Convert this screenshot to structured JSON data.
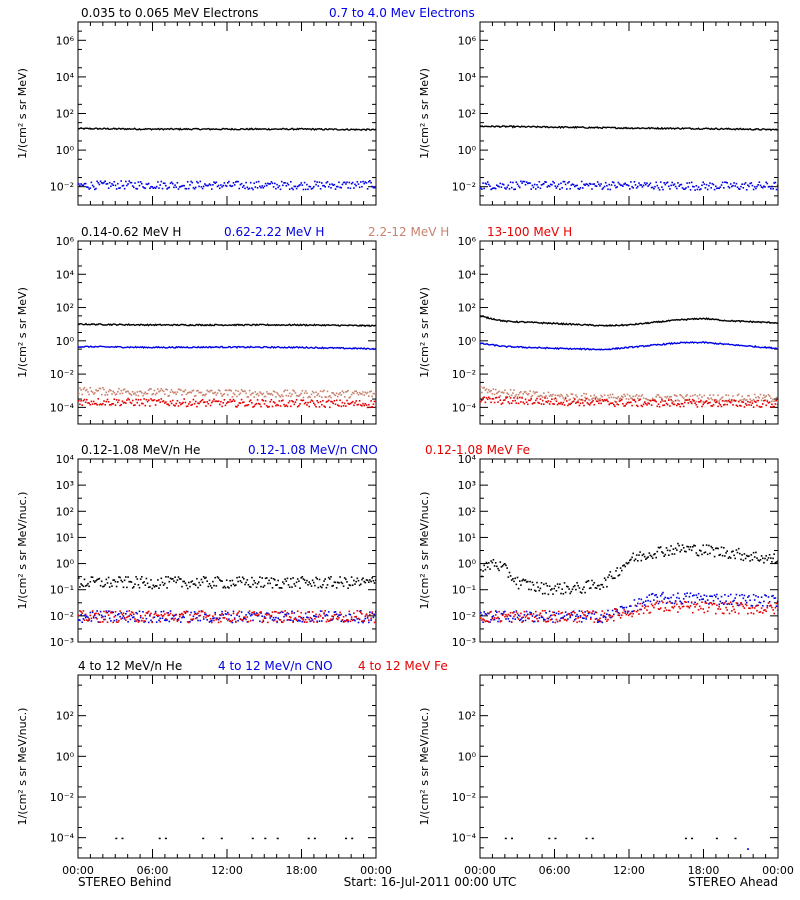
{
  "colors": {
    "black": "#000000",
    "blue": "#0000e6",
    "tan": "#c8826e",
    "red": "#e60000"
  },
  "figure": {
    "footer": {
      "left": "STEREO Behind",
      "center": "Start: 16-Jul-2011 00:00 UTC",
      "right": "STEREO Ahead"
    }
  },
  "chart_data": [
    {
      "type": "scatter",
      "row": 0,
      "side": "behind",
      "ylabel": "1/(cm² s sr MeV)",
      "ylim_log10": [
        -3,
        7
      ],
      "ytick_exponents": [
        -2,
        0,
        2,
        4,
        6
      ],
      "ytick_labels": [
        "10⁻²",
        "10⁰",
        "10²",
        "10⁴",
        "10⁶"
      ],
      "xlim_hours": [
        0,
        24
      ],
      "xtick_labels": [
        "00:00",
        "06:00",
        "12:00",
        "18:00",
        "00:00"
      ],
      "legend": [
        {
          "text": "0.035 to 0.065 MeV Electrons",
          "color": "black"
        },
        {
          "text": "0.7 to 4.0 Mev Electrons",
          "color": "blue"
        }
      ],
      "series": [
        {
          "name": "0.035 to 0.065 MeV Electrons",
          "color": "black",
          "style": "line",
          "x": [
            0,
            6,
            12,
            18,
            24
          ],
          "y": [
            15,
            14,
            14,
            14,
            13
          ]
        },
        {
          "name": "0.7 to 4.0 Mev Electrons",
          "color": "blue",
          "style": "dots",
          "x": [
            0,
            6,
            12,
            18,
            24
          ],
          "y": [
            0.013,
            0.014,
            0.013,
            0.013,
            0.014
          ]
        }
      ]
    },
    {
      "type": "scatter",
      "row": 0,
      "side": "ahead",
      "ylabel": "1/(cm² s sr MeV)",
      "ylim_log10": [
        -3,
        7
      ],
      "ytick_exponents": [
        -2,
        0,
        2,
        4,
        6
      ],
      "ytick_labels": [
        "10⁻²",
        "10⁰",
        "10²",
        "10⁴",
        "10⁶"
      ],
      "xlim_hours": [
        0,
        24
      ],
      "xtick_labels": [
        "00:00",
        "06:00",
        "12:00",
        "18:00",
        "00:00"
      ],
      "legend": [],
      "series": [
        {
          "name": "0.035 to 0.065 MeV Electrons",
          "color": "black",
          "style": "line",
          "x": [
            0,
            6,
            12,
            18,
            24
          ],
          "y": [
            20,
            18,
            16,
            15,
            13
          ]
        },
        {
          "name": "0.7 to 4.0 Mev Electrons",
          "color": "blue",
          "style": "dots",
          "x": [
            0,
            6,
            12,
            18,
            24
          ],
          "y": [
            0.013,
            0.013,
            0.013,
            0.012,
            0.012
          ]
        }
      ]
    },
    {
      "type": "scatter",
      "row": 1,
      "side": "behind",
      "ylabel": "1/(cm² s sr MeV)",
      "ylim_log10": [
        -5,
        6
      ],
      "ytick_exponents": [
        -4,
        -2,
        0,
        2,
        4,
        6
      ],
      "ytick_labels": [
        "10⁻⁴",
        "10⁻²",
        "10⁰",
        "10²",
        "10⁴",
        "10⁶"
      ],
      "xlim_hours": [
        0,
        24
      ],
      "xtick_labels": [
        "00:00",
        "06:00",
        "12:00",
        "18:00",
        "00:00"
      ],
      "legend": [
        {
          "text": "0.14-0.62 MeV H",
          "color": "black"
        },
        {
          "text": "0.62-2.22 MeV H",
          "color": "blue"
        },
        {
          "text": "2.2-12 MeV H",
          "color": "tan"
        },
        {
          "text": "13-100 MeV H",
          "color": "red"
        }
      ],
      "series": [
        {
          "name": "0.14-0.62 MeV H",
          "color": "black",
          "style": "line",
          "x": [
            0,
            6,
            12,
            18,
            24
          ],
          "y": [
            10,
            9,
            9,
            9,
            8
          ]
        },
        {
          "name": "0.62-2.22 MeV H",
          "color": "blue",
          "style": "line",
          "x": [
            0,
            6,
            12,
            18,
            24
          ],
          "y": [
            0.45,
            0.4,
            0.42,
            0.4,
            0.33
          ]
        },
        {
          "name": "2.2-12 MeV H",
          "color": "tan",
          "style": "dots",
          "x": [
            0,
            6,
            12,
            18,
            24
          ],
          "y": [
            0.0011,
            0.0009,
            0.0008,
            0.0007,
            0.0007
          ]
        },
        {
          "name": "13-100 MeV H",
          "color": "red",
          "style": "dots",
          "x": [
            0,
            6,
            12,
            18,
            24
          ],
          "y": [
            0.00025,
            0.00022,
            0.0002,
            0.00019,
            0.00018
          ]
        }
      ]
    },
    {
      "type": "scatter",
      "row": 1,
      "side": "ahead",
      "ylabel": "1/(cm² s sr MeV)",
      "ylim_log10": [
        -5,
        6
      ],
      "ytick_exponents": [
        -4,
        -2,
        0,
        2,
        4,
        6
      ],
      "ytick_labels": [
        "10⁻⁴",
        "10⁻²",
        "10⁰",
        "10²",
        "10⁴",
        "10⁶"
      ],
      "xlim_hours": [
        0,
        24
      ],
      "xtick_labels": [
        "00:00",
        "06:00",
        "12:00",
        "18:00",
        "00:00"
      ],
      "legend": [],
      "series": [
        {
          "name": "0.14-0.62 MeV H",
          "color": "black",
          "style": "line",
          "x": [
            0,
            2,
            6,
            10,
            12,
            16,
            18,
            20,
            24
          ],
          "y": [
            30,
            15,
            11,
            8,
            9,
            18,
            22,
            16,
            12
          ]
        },
        {
          "name": "0.62-2.22 MeV H",
          "color": "blue",
          "style": "line",
          "x": [
            0,
            2,
            6,
            10,
            12,
            16,
            18,
            20,
            24
          ],
          "y": [
            0.7,
            0.45,
            0.35,
            0.3,
            0.4,
            0.75,
            0.8,
            0.6,
            0.35
          ]
        },
        {
          "name": "2.2-12 MeV H",
          "color": "tan",
          "style": "dots",
          "x": [
            0,
            2,
            6,
            12,
            18,
            24
          ],
          "y": [
            0.0015,
            0.0008,
            0.0005,
            0.0004,
            0.0004,
            0.0004
          ]
        },
        {
          "name": "13-100 MeV H",
          "color": "red",
          "style": "dots",
          "x": [
            0,
            6,
            12,
            18,
            24
          ],
          "y": [
            0.0003,
            0.00025,
            0.0002,
            0.0002,
            0.00018
          ]
        }
      ]
    },
    {
      "type": "scatter",
      "row": 2,
      "side": "behind",
      "ylabel": "1/(cm² s sr MeV/nuc.)",
      "ylim_log10": [
        -3,
        4
      ],
      "ytick_exponents": [
        -3,
        -2,
        -1,
        0,
        1,
        2,
        3,
        4
      ],
      "ytick_labels": [
        "10⁻³",
        "10⁻²",
        "10⁻¹",
        "10⁰",
        "10¹",
        "10²",
        "10³",
        "10⁴"
      ],
      "xlim_hours": [
        0,
        24
      ],
      "xtick_labels": [
        "00:00",
        "06:00",
        "12:00",
        "18:00",
        "00:00"
      ],
      "legend": [
        {
          "text": "0.12-1.08 MeV/n He",
          "color": "black"
        },
        {
          "text": "0.12-1.08 MeV/n CNO",
          "color": "blue"
        },
        {
          "text": "0.12-1.08 MeV Fe",
          "color": "red"
        }
      ],
      "series": [
        {
          "name": "0.12-1.08 MeV/n He",
          "color": "black",
          "style": "dots",
          "x": [
            0,
            6,
            12,
            18,
            24
          ],
          "y": [
            0.2,
            0.2,
            0.2,
            0.2,
            0.2
          ]
        },
        {
          "name": "0.12-1.08 MeV/n CNO",
          "color": "blue",
          "style": "dots",
          "x": [
            0,
            6,
            12,
            18,
            24
          ],
          "y": [
            0.01,
            0.01,
            0.01,
            0.01,
            0.01
          ]
        },
        {
          "name": "0.12-1.08 MeV Fe",
          "color": "red",
          "style": "dots",
          "x": [
            0,
            6,
            12,
            18,
            24
          ],
          "y": [
            0.01,
            0.01,
            0.01,
            0.01,
            0.01
          ]
        }
      ]
    },
    {
      "type": "scatter",
      "row": 2,
      "side": "ahead",
      "ylabel": "1/(cm² s sr MeV/nuc.)",
      "ylim_log10": [
        -3,
        4
      ],
      "ytick_exponents": [
        -3,
        -2,
        -1,
        0,
        1,
        2,
        3,
        4
      ],
      "ytick_labels": [
        "10⁻³",
        "10⁻²",
        "10⁻¹",
        "10⁰",
        "10¹",
        "10²",
        "10³",
        "10⁴"
      ],
      "xlim_hours": [
        0,
        24
      ],
      "xtick_labels": [
        "00:00",
        "06:00",
        "12:00",
        "18:00",
        "00:00"
      ],
      "legend": [],
      "series": [
        {
          "name": "0.12-1.08 MeV/n He",
          "color": "black",
          "style": "dots",
          "x": [
            0,
            1,
            2,
            3,
            5,
            8,
            10,
            12,
            14,
            16,
            18,
            20,
            22,
            24
          ],
          "y": [
            0.5,
            1.2,
            0.6,
            0.2,
            0.12,
            0.12,
            0.2,
            1.5,
            3,
            4,
            3.5,
            2.8,
            2,
            1.5
          ]
        },
        {
          "name": "0.12-1.08 MeV/n CNO",
          "color": "blue",
          "style": "dots",
          "x": [
            0,
            6,
            10,
            14,
            18,
            24
          ],
          "y": [
            0.01,
            0.01,
            0.01,
            0.05,
            0.05,
            0.04
          ]
        },
        {
          "name": "0.12-1.08 MeV Fe",
          "color": "red",
          "style": "dots",
          "x": [
            0,
            6,
            10,
            14,
            18,
            24
          ],
          "y": [
            0.01,
            0.01,
            0.01,
            0.025,
            0.022,
            0.02
          ]
        }
      ]
    },
    {
      "type": "scatter",
      "row": 3,
      "side": "behind",
      "ylabel": "1/(cm² s sr MeV/nuc.)",
      "ylim_log10": [
        -5,
        4
      ],
      "ytick_exponents": [
        -4,
        -2,
        0,
        2
      ],
      "ytick_labels": [
        "10⁻⁴",
        "10⁻²",
        "10⁰",
        "10²"
      ],
      "xlim_hours": [
        0,
        24
      ],
      "xtick_labels": [
        "00:00",
        "06:00",
        "12:00",
        "18:00",
        "00:00"
      ],
      "legend": [
        {
          "text": "4 to 12 MeV/n He",
          "color": "black"
        },
        {
          "text": "4 to 12 MeV/n CNO",
          "color": "blue"
        },
        {
          "text": "4 to 12 MeV Fe",
          "color": "red"
        }
      ],
      "series": [
        {
          "name": "4 to 12 MeV/n He",
          "color": "black",
          "style": "sparse",
          "x": [
            3,
            3.5,
            6.5,
            7,
            10,
            11.5,
            14,
            15,
            16,
            18.5,
            19,
            21.5,
            22
          ],
          "y": [
            0.0001,
            0.0001,
            0.0001,
            0.0001,
            0.0001,
            0.0001,
            0.0001,
            0.0001,
            0.0001,
            0.0001,
            0.0001,
            0.0001,
            0.0001
          ]
        }
      ]
    },
    {
      "type": "scatter",
      "row": 3,
      "side": "ahead",
      "ylabel": "1/(cm² s sr MeV/nuc.)",
      "ylim_log10": [
        -5,
        4
      ],
      "ytick_exponents": [
        -4,
        -2,
        0,
        2
      ],
      "ytick_labels": [
        "10⁻⁴",
        "10⁻²",
        "10⁰",
        "10²"
      ],
      "xlim_hours": [
        0,
        24
      ],
      "xtick_labels": [
        "00:00",
        "06:00",
        "12:00",
        "18:00",
        "00:00"
      ],
      "legend": [],
      "series": [
        {
          "name": "4 to 12 MeV/n He",
          "color": "black",
          "style": "sparse",
          "x": [
            2,
            2.5,
            5.5,
            6,
            8.5,
            9,
            16.5,
            17,
            19,
            20.5
          ],
          "y": [
            0.0001,
            0.0001,
            0.0001,
            0.0001,
            0.0001,
            0.0001,
            0.0001,
            0.0001,
            0.0001,
            0.0001
          ]
        },
        {
          "name": "4 to 12 MeV/n CNO",
          "color": "blue",
          "style": "sparse",
          "x": [
            21.5
          ],
          "y": [
            3e-05
          ]
        }
      ]
    }
  ]
}
